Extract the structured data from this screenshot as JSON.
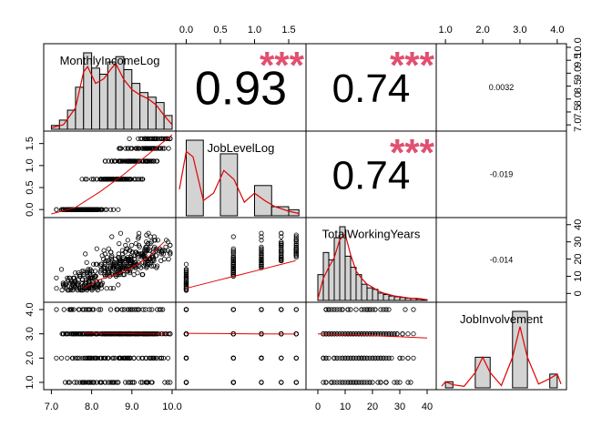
{
  "chart_data": {
    "type": "scatter-matrix",
    "variables": [
      "MonthlyIncomeLog",
      "JobLevelLog",
      "TotalWorkingYears",
      "JobInvolvement"
    ],
    "ranges": [
      [
        6.9,
        10.0
      ],
      [
        -0.1,
        1.7
      ],
      [
        -3,
        42
      ],
      [
        0.85,
        4.15
      ]
    ],
    "top_ticks": {
      "JobLevelLog": [
        "0.0",
        "0.5",
        "1.0",
        "1.5"
      ],
      "JobInvolvement": [
        "1.0",
        "2.0",
        "3.0",
        "4.0"
      ]
    },
    "top_tick_values": {
      "JobLevelLog": [
        0,
        0.5,
        1,
        1.5
      ],
      "JobInvolvement": [
        1,
        2,
        3,
        4
      ]
    },
    "bottom_ticks": {
      "MonthlyIncomeLog": [
        "7.0",
        "8.0",
        "9.0",
        "10.0"
      ],
      "TotalWorkingYears": [
        "0",
        "10",
        "20",
        "30",
        "40"
      ]
    },
    "bottom_tick_values": {
      "MonthlyIncomeLog": [
        7,
        8,
        9,
        10
      ],
      "TotalWorkingYears": [
        0,
        10,
        20,
        30,
        40
      ]
    },
    "left_ticks": {
      "JobLevelLog": [
        "0.0",
        "0.5",
        "1.0",
        "1.5"
      ],
      "JobInvolvement": [
        "1.0",
        "2.0",
        "3.0",
        "4.0"
      ]
    },
    "right_ticks": {
      "MonthlyIncomeLog": [
        "7.0",
        "7.5",
        "8.0",
        "8.5",
        "9.0",
        "9.5",
        "10.0"
      ],
      "TotalWorkingYears": [
        "0",
        "10",
        "20",
        "30",
        "40"
      ]
    },
    "right_tick_values": {
      "MonthlyIncomeLog": [
        7,
        7.5,
        8,
        8.5,
        9,
        9.5,
        10
      ],
      "TotalWorkingYears": [
        0,
        10,
        20,
        30,
        40
      ]
    },
    "correlations": [
      {
        "row": 0,
        "col": 1,
        "value": "0.93",
        "stars": "***",
        "size": 52
      },
      {
        "row": 0,
        "col": 2,
        "value": "0.74",
        "stars": "***",
        "size": 44
      },
      {
        "row": 0,
        "col": 3,
        "value": "0.0032",
        "stars": "",
        "size": 9
      },
      {
        "row": 1,
        "col": 2,
        "value": "0.74",
        "stars": "***",
        "size": 44
      },
      {
        "row": 1,
        "col": 3,
        "value": "-0.019",
        "stars": "",
        "size": 9
      },
      {
        "row": 2,
        "col": 3,
        "value": "-0.014",
        "stars": "",
        "size": 9
      }
    ],
    "histograms": {
      "MonthlyIncomeLog": {
        "breaks": [
          7.0,
          7.2,
          7.4,
          7.6,
          7.8,
          8.0,
          8.2,
          8.4,
          8.6,
          8.8,
          9.0,
          9.2,
          9.4,
          9.6,
          9.8,
          10.0
        ],
        "heights": [
          0.05,
          0.12,
          0.25,
          0.55,
          1.0,
          0.8,
          0.72,
          0.88,
          0.95,
          0.78,
          0.6,
          0.48,
          0.42,
          0.35,
          0.18
        ]
      },
      "JobLevelLog": {
        "breaks": [
          0,
          0.25,
          0.5,
          0.75,
          1.0,
          1.25,
          1.5,
          1.65
        ],
        "heights": [
          1.0,
          0.0,
          0.82,
          0.0,
          0.4,
          0.12,
          0.08
        ]
      },
      "TotalWorkingYears": {
        "breaks": [
          0,
          2,
          4,
          6,
          8,
          10,
          12,
          14,
          16,
          18,
          20,
          22,
          24,
          26,
          28,
          30,
          32,
          34,
          36,
          38,
          40
        ],
        "heights": [
          0.35,
          0.65,
          0.55,
          0.85,
          1.0,
          0.6,
          0.45,
          0.35,
          0.22,
          0.17,
          0.15,
          0.1,
          0.08,
          0.06,
          0.05,
          0.04,
          0.03,
          0.03,
          0.02,
          0.01
        ]
      },
      "JobInvolvement": {
        "breaks": [
          1.0,
          1.2,
          1.8,
          2.2,
          2.8,
          3.2,
          3.8,
          4.0
        ],
        "heights": [
          0.08,
          0.0,
          0.4,
          0.0,
          1.0,
          0.0,
          0.18
        ]
      }
    },
    "densities": {
      "MonthlyIncomeLog": {
        "x": [
          7.0,
          7.3,
          7.6,
          7.8,
          7.9,
          8.1,
          8.3,
          8.5,
          8.6,
          8.8,
          9.0,
          9.2,
          9.4,
          9.6,
          9.8,
          10.0
        ],
        "y": [
          0.02,
          0.06,
          0.28,
          0.75,
          0.82,
          0.6,
          0.66,
          0.8,
          0.86,
          0.65,
          0.52,
          0.45,
          0.4,
          0.32,
          0.18,
          0.06
        ]
      },
      "JobLevelLog": {
        "x": [
          -0.1,
          0.0,
          0.1,
          0.25,
          0.4,
          0.55,
          0.7,
          0.85,
          1.0,
          1.15,
          1.3,
          1.5,
          1.65
        ],
        "y": [
          0.35,
          0.85,
          0.78,
          0.2,
          0.3,
          0.6,
          0.48,
          0.18,
          0.3,
          0.2,
          0.12,
          0.06,
          0.03
        ]
      },
      "TotalWorkingYears": {
        "x": [
          0,
          2,
          4,
          6,
          8,
          10,
          12,
          14,
          16,
          18,
          20,
          22,
          24,
          26,
          28,
          30,
          32,
          34,
          36,
          38,
          40
        ],
        "y": [
          0.02,
          0.3,
          0.45,
          0.58,
          0.82,
          0.9,
          0.62,
          0.4,
          0.3,
          0.22,
          0.18,
          0.13,
          0.1,
          0.08,
          0.06,
          0.05,
          0.04,
          0.03,
          0.03,
          0.02,
          0.01
        ]
      },
      "JobInvolvement": {
        "x": [
          0.9,
          1.0,
          1.2,
          1.5,
          1.8,
          2.0,
          2.2,
          2.5,
          2.8,
          3.0,
          3.2,
          3.5,
          3.8,
          4.0,
          4.1
        ],
        "y": [
          0.02,
          0.08,
          0.04,
          0.02,
          0.2,
          0.4,
          0.2,
          0.03,
          0.4,
          0.8,
          0.4,
          0.05,
          0.12,
          0.18,
          0.05
        ]
      }
    },
    "fit_lines": {
      "1_0": {
        "x": [
          7.0,
          7.6,
          8.2,
          8.8,
          9.4,
          10.0
        ],
        "y": [
          -0.1,
          0.05,
          0.4,
          0.8,
          1.25,
          1.7
        ]
      },
      "2_0": {
        "x": [
          7.8,
          8.2,
          8.6,
          9.0,
          9.4,
          9.8
        ],
        "y": [
          3,
          8,
          11,
          15,
          21,
          30
        ]
      },
      "2_1": {
        "x": [
          0.0,
          0.5,
          1.0,
          1.6
        ],
        "y": [
          3,
          8,
          13,
          19
        ]
      },
      "3_0": {
        "x": [
          7.8,
          8.5,
          9.2,
          9.9
        ],
        "y": [
          3.03,
          3.02,
          3.0,
          2.99
        ]
      },
      "3_1": {
        "x": [
          0.0,
          0.5,
          1.0,
          1.6
        ],
        "y": [
          3.02,
          3.01,
          3.0,
          2.99
        ]
      },
      "3_2": {
        "x": [
          0,
          10,
          20,
          30,
          40
        ],
        "y": [
          3.0,
          2.96,
          2.92,
          2.88,
          2.83
        ]
      }
    }
  }
}
